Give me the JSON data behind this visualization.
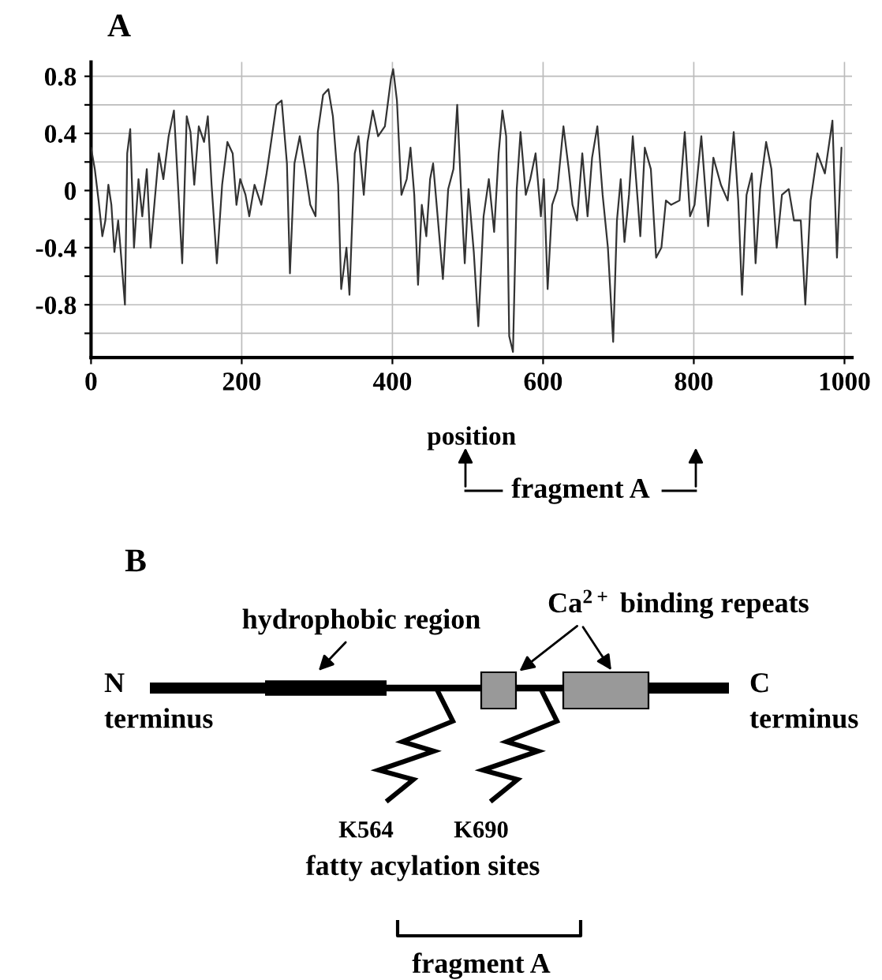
{
  "chart_data": [
    {
      "type": "line",
      "title": "A",
      "xlabel": "position",
      "xlim": [
        0,
        1010
      ],
      "xticks": [
        0,
        200,
        400,
        600,
        800,
        1000
      ],
      "ylim": [
        -1.17,
        0.9
      ],
      "yticks": [
        {
          "value": -1.0,
          "label": null
        },
        -0.8,
        {
          "value": -0.6,
          "label": null
        },
        -0.4,
        {
          "value": -0.2,
          "label": null
        },
        0,
        {
          "value": 0.2,
          "label": null
        },
        0.4,
        {
          "value": 0.6,
          "label": null
        },
        0.8
      ],
      "grid": true,
      "marker": "none",
      "line_style": "solid",
      "annotations": [
        "fragment A"
      ],
      "series": [
        {
          "color": "#333333",
          "x": [
            0,
            5,
            10,
            15,
            19,
            23,
            27,
            31,
            36,
            39,
            45,
            48,
            52,
            57,
            63,
            68,
            74,
            79,
            84,
            90,
            96,
            103,
            110,
            115,
            121,
            127,
            132,
            137,
            143,
            150,
            155,
            160,
            167,
            174,
            181,
            188,
            193,
            198,
            205,
            210,
            217,
            226,
            233,
            239,
            246,
            253,
            260,
            264,
            270,
            277,
            284,
            291,
            298,
            301,
            308,
            315,
            321,
            328,
            332,
            339,
            343,
            350,
            355,
            362,
            367,
            374,
            381,
            390,
            398,
            401,
            406,
            412,
            419,
            424,
            429,
            434,
            439,
            445,
            450,
            454,
            460,
            467,
            474,
            481,
            486,
            491,
            496,
            501,
            508,
            514,
            521,
            528,
            535,
            541,
            546,
            551,
            555,
            560,
            565,
            570,
            577,
            583,
            590,
            597,
            601,
            606,
            612,
            619,
            627,
            634,
            639,
            645,
            652,
            659,
            665,
            672,
            679,
            686,
            693,
            698,
            703,
            708,
            714,
            719,
            726,
            729,
            735,
            743,
            750,
            757,
            763,
            770,
            781,
            788,
            795,
            801,
            810,
            819,
            826,
            836,
            845,
            853,
            859,
            864,
            870,
            877,
            882,
            888,
            896,
            903,
            910,
            917,
            926,
            933,
            942,
            948,
            955,
            964,
            974,
            984,
            990,
            996
          ],
          "values": [
            0.3,
            0.15,
            -0.07,
            -0.32,
            -0.21,
            0.04,
            -0.1,
            -0.43,
            -0.21,
            -0.4,
            -0.8,
            0.26,
            0.43,
            -0.4,
            0.08,
            -0.18,
            0.15,
            -0.4,
            -0.1,
            0.26,
            0.08,
            0.38,
            0.56,
            0.08,
            -0.51,
            0.52,
            0.41,
            0.04,
            0.45,
            0.34,
            0.52,
            0.04,
            -0.51,
            0.04,
            0.34,
            0.26,
            -0.1,
            0.08,
            -0.03,
            -0.18,
            0.04,
            -0.1,
            0.12,
            0.34,
            0.6,
            0.63,
            0.19,
            -0.58,
            0.19,
            0.38,
            0.15,
            -0.1,
            -0.18,
            0.41,
            0.67,
            0.71,
            0.52,
            0.04,
            -0.69,
            -0.4,
            -0.73,
            0.26,
            0.38,
            -0.03,
            0.34,
            0.56,
            0.38,
            0.45,
            0.78,
            0.85,
            0.63,
            -0.03,
            0.08,
            0.3,
            -0.03,
            -0.66,
            -0.1,
            -0.32,
            0.08,
            0.19,
            -0.18,
            -0.62,
            0.01,
            0.15,
            0.6,
            0.01,
            -0.51,
            0.01,
            -0.43,
            -0.95,
            -0.18,
            0.08,
            -0.29,
            0.26,
            0.56,
            0.38,
            -1.02,
            -1.13,
            0.01,
            0.41,
            -0.03,
            0.08,
            0.26,
            -0.18,
            0.08,
            -0.69,
            -0.1,
            0.01,
            0.45,
            0.15,
            -0.1,
            -0.21,
            0.26,
            -0.18,
            0.23,
            0.45,
            -0.03,
            -0.4,
            -1.06,
            -0.21,
            0.08,
            -0.36,
            -0.03,
            0.38,
            -0.1,
            -0.32,
            0.3,
            0.15,
            -0.47,
            -0.4,
            -0.07,
            -0.1,
            -0.07,
            0.41,
            -0.18,
            -0.1,
            0.38,
            -0.25,
            0.23,
            0.04,
            -0.07,
            0.41,
            -0.07,
            -0.73,
            -0.03,
            0.12,
            -0.51,
            0.01,
            0.34,
            0.15,
            -0.4,
            -0.03,
            0.01,
            -0.21,
            -0.21,
            -0.8,
            -0.07,
            0.26,
            0.12,
            0.49,
            -0.47,
            0.3
          ]
        }
      ]
    },
    {
      "type": "other",
      "title": "B",
      "annotations": [
        "hydrophobic region",
        "Ca$^{2+}$ binding repeats",
        "N\nterminus",
        "C\nterminus",
        "K564",
        "K690",
        "fatty acylation sites",
        "fragment A"
      ]
    }
  ]
}
